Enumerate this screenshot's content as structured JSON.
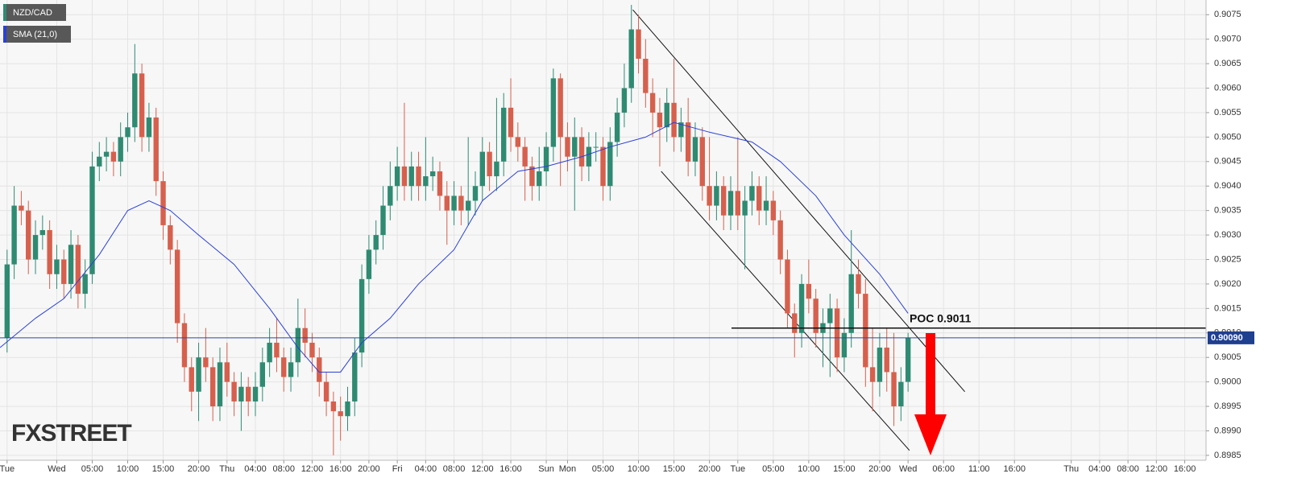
{
  "chart_data": {
    "type": "candlestick",
    "legend_position": "top-left",
    "grid": true,
    "watermark": "FXSTREET",
    "xlim": [
      -1,
      169
    ],
    "ylim": [
      0.8984,
      0.9078
    ],
    "xticks": [
      {
        "value": 0,
        "label": "Tue"
      },
      {
        "value": 7,
        "label": "Wed"
      },
      {
        "value": 12,
        "label": "05:00"
      },
      {
        "value": 17,
        "label": "10:00"
      },
      {
        "value": 22,
        "label": "15:00"
      },
      {
        "value": 27,
        "label": "20:00"
      },
      {
        "value": 31,
        "label": "Thu"
      },
      {
        "value": 35,
        "label": "04:00"
      },
      {
        "value": 39,
        "label": "08:00"
      },
      {
        "value": 43,
        "label": "12:00"
      },
      {
        "value": 47,
        "label": "16:00"
      },
      {
        "value": 51,
        "label": "20:00"
      },
      {
        "value": 55,
        "label": "Fri"
      },
      {
        "value": 59,
        "label": "04:00"
      },
      {
        "value": 63,
        "label": "08:00"
      },
      {
        "value": 67,
        "label": "12:00"
      },
      {
        "value": 71,
        "label": "16:00"
      },
      {
        "value": 76,
        "label": "Sun"
      },
      {
        "value": 79,
        "label": "Mon"
      },
      {
        "value": 84,
        "label": "05:00"
      },
      {
        "value": 89,
        "label": "10:00"
      },
      {
        "value": 94,
        "label": "15:00"
      },
      {
        "value": 99,
        "label": "20:00"
      },
      {
        "value": 103,
        "label": "Tue"
      },
      {
        "value": 108,
        "label": "05:00"
      },
      {
        "value": 113,
        "label": "10:00"
      },
      {
        "value": 118,
        "label": "15:00"
      },
      {
        "value": 123,
        "label": "20:00"
      },
      {
        "value": 127,
        "label": "Wed"
      },
      {
        "value": 132,
        "label": "06:00"
      },
      {
        "value": 137,
        "label": "11:00"
      },
      {
        "value": 142,
        "label": "16:00"
      },
      {
        "value": 150,
        "label": "Thu"
      },
      {
        "value": 154,
        "label": "04:00"
      },
      {
        "value": 158,
        "label": "08:00"
      },
      {
        "value": 162,
        "label": "12:00"
      },
      {
        "value": 166,
        "label": "16:00"
      }
    ],
    "yticks": [
      0.8985,
      {
        "value": 0.899,
        "label": "0.8990"
      },
      0.8995,
      {
        "value": 0.9,
        "label": "0.9000"
      },
      0.9005,
      {
        "value": 0.901,
        "label": "0.9010"
      },
      0.9015,
      {
        "value": 0.902,
        "label": "0.9020"
      },
      0.9025,
      {
        "value": 0.903,
        "label": "0.9030"
      },
      0.9035,
      {
        "value": 0.904,
        "label": "0.9040"
      },
      0.9045,
      {
        "value": 0.905,
        "label": "0.9050"
      },
      0.9055,
      {
        "value": 0.906,
        "label": "0.9060"
      },
      0.9065,
      {
        "value": 0.907,
        "label": "0.9070"
      },
      0.9075
    ],
    "series": [
      {
        "name": "NZD/CAD",
        "color": "#2e8b72",
        "up_color": "#2e8b72",
        "down_color": "#d6604d",
        "open": [
          0.9009,
          0.9024,
          0.9036,
          0.9035,
          0.9025,
          0.903,
          0.9031,
          0.9022,
          0.9025,
          0.902,
          0.9028,
          0.9018,
          0.9022,
          0.9044,
          0.9046,
          0.9047,
          0.9045,
          0.905,
          0.9052,
          0.9063,
          0.905,
          0.9054,
          0.9041,
          0.9032,
          0.9027,
          0.9012,
          0.9003,
          0.8998,
          0.9005,
          0.9003,
          0.8995,
          0.9004,
          0.9,
          0.8996,
          0.8999,
          0.8996,
          0.8999,
          0.9004,
          0.9008,
          0.9005,
          0.9001,
          0.9004,
          0.9011,
          0.9008,
          0.9005,
          0.9,
          0.8996,
          0.8994,
          0.8993,
          0.8996,
          0.9006,
          0.9021,
          0.9027,
          0.903,
          0.9036,
          0.904,
          0.9044,
          0.904,
          0.9044,
          0.904,
          0.9042,
          0.9043,
          0.9038,
          0.9035,
          0.9038,
          0.9035,
          0.9037,
          0.904,
          0.9047,
          0.9042,
          0.9045,
          0.9056,
          0.905,
          0.9048,
          0.9044,
          0.904,
          0.9043,
          0.9048,
          0.9062,
          0.905,
          0.9046,
          0.905,
          0.9044,
          0.9048,
          0.9048,
          0.904,
          0.9049,
          0.9055,
          0.906,
          0.9072,
          0.9066,
          0.9059,
          0.9055,
          0.9052,
          0.9057,
          0.905,
          0.9053,
          0.9045,
          0.905,
          0.904,
          0.9036,
          0.904,
          0.9034,
          0.9039,
          0.9034,
          0.9037,
          0.904,
          0.9035,
          0.9037,
          0.9033,
          0.9025,
          0.9014,
          0.901,
          0.902,
          0.9017,
          0.901,
          0.9012,
          0.9015,
          0.9005,
          0.901,
          0.9022,
          0.9018,
          0.9003,
          0.9,
          0.9007,
          0.9002,
          0.8995,
          0.9
        ],
        "high": [
          0.9027,
          0.904,
          0.9039,
          0.9037,
          0.9033,
          0.9034,
          0.9033,
          0.9028,
          0.9027,
          0.9031,
          0.903,
          0.9025,
          0.9047,
          0.9049,
          0.905,
          0.9049,
          0.9053,
          0.9055,
          0.9069,
          0.9065,
          0.9057,
          0.9056,
          0.9043,
          0.9034,
          0.9029,
          0.9014,
          0.9005,
          0.9008,
          0.9011,
          0.9005,
          0.9007,
          0.9008,
          0.9002,
          0.9002,
          0.9001,
          0.9002,
          0.9007,
          0.9011,
          0.9013,
          0.9007,
          0.9007,
          0.9017,
          0.9015,
          0.901,
          0.9007,
          0.9002,
          0.8998,
          0.8997,
          0.8999,
          0.9009,
          0.9024,
          0.903,
          0.9033,
          0.904,
          0.9045,
          0.9048,
          0.9057,
          0.9047,
          0.9047,
          0.905,
          0.9046,
          0.9045,
          0.9041,
          0.9041,
          0.904,
          0.905,
          0.9043,
          0.905,
          0.9049,
          0.9058,
          0.9059,
          0.9062,
          0.9053,
          0.905,
          0.9046,
          0.9048,
          0.9051,
          0.9064,
          0.9063,
          0.9053,
          0.9054,
          0.9052,
          0.9051,
          0.9051,
          0.905,
          0.9052,
          0.9058,
          0.9065,
          0.9077,
          0.9075,
          0.907,
          0.9062,
          0.9058,
          0.906,
          0.9066,
          0.9056,
          0.9058,
          0.9053,
          0.9052,
          0.905,
          0.9043,
          0.9042,
          0.9042,
          0.905,
          0.904,
          0.9043,
          0.9042,
          0.9042,
          0.9039,
          0.9035,
          0.9027,
          0.9016,
          0.9022,
          0.9025,
          0.9019,
          0.9015,
          0.9018,
          0.9017,
          0.9013,
          0.9031,
          0.9025,
          0.9021,
          0.9011,
          0.901,
          0.9011,
          0.901,
          0.9003,
          0.901
        ],
        "low": [
          0.9006,
          0.9021,
          0.9032,
          0.9022,
          0.9022,
          0.9027,
          0.9019,
          0.9019,
          0.9017,
          0.9017,
          0.9015,
          0.9015,
          0.902,
          0.9041,
          0.9043,
          0.9042,
          0.9042,
          0.9047,
          0.9049,
          0.9047,
          0.9047,
          0.9038,
          0.9029,
          0.9024,
          0.9008,
          0.9,
          0.8994,
          0.8992,
          0.9,
          0.8992,
          0.8992,
          0.8997,
          0.8993,
          0.899,
          0.8993,
          0.8993,
          0.8996,
          0.9001,
          0.9002,
          0.8998,
          0.8998,
          0.9001,
          0.9005,
          0.9002,
          0.8997,
          0.8993,
          0.8985,
          0.8988,
          0.899,
          0.8993,
          0.9003,
          0.9018,
          0.9024,
          0.9027,
          0.9033,
          0.9037,
          0.9037,
          0.9037,
          0.9037,
          0.9037,
          0.9039,
          0.9035,
          0.9028,
          0.9032,
          0.9032,
          0.9032,
          0.9034,
          0.9037,
          0.9039,
          0.9039,
          0.9042,
          0.9047,
          0.9045,
          0.9037,
          0.9037,
          0.9037,
          0.904,
          0.9045,
          0.904,
          0.9043,
          0.9035,
          0.9041,
          0.9041,
          0.9045,
          0.9037,
          0.9037,
          0.9046,
          0.9052,
          0.9057,
          0.9063,
          0.9056,
          0.905,
          0.9044,
          0.9049,
          0.9047,
          0.9047,
          0.9042,
          0.9042,
          0.9037,
          0.9033,
          0.9033,
          0.9031,
          0.9031,
          0.9031,
          0.9023,
          0.9034,
          0.9032,
          0.9032,
          0.903,
          0.9022,
          0.9011,
          0.9005,
          0.9007,
          0.9014,
          0.9007,
          0.9003,
          0.9001,
          0.9002,
          0.9002,
          0.9007,
          0.9015,
          0.8999,
          0.8994,
          0.8997,
          0.8998,
          0.8991,
          0.8992,
          0.8998
        ],
        "close": [
          0.9024,
          0.9036,
          0.9035,
          0.9025,
          0.903,
          0.9031,
          0.9022,
          0.9025,
          0.902,
          0.9028,
          0.9018,
          0.9022,
          0.9044,
          0.9046,
          0.9047,
          0.9045,
          0.905,
          0.9052,
          0.9063,
          0.905,
          0.9054,
          0.9041,
          0.9032,
          0.9027,
          0.9012,
          0.9003,
          0.8998,
          0.9005,
          0.9003,
          0.8995,
          0.9004,
          0.9,
          0.8996,
          0.8999,
          0.8996,
          0.8999,
          0.9004,
          0.9008,
          0.9005,
          0.9001,
          0.9004,
          0.9011,
          0.9008,
          0.9005,
          0.9,
          0.8996,
          0.8994,
          0.8993,
          0.8996,
          0.9006,
          0.9021,
          0.9027,
          0.903,
          0.9036,
          0.904,
          0.9044,
          0.904,
          0.9044,
          0.904,
          0.9042,
          0.9043,
          0.9038,
          0.9035,
          0.9038,
          0.9035,
          0.9037,
          0.904,
          0.9047,
          0.9042,
          0.9045,
          0.9056,
          0.905,
          0.9048,
          0.9044,
          0.904,
          0.9043,
          0.9048,
          0.9062,
          0.905,
          0.9046,
          0.905,
          0.9044,
          0.9048,
          0.9048,
          0.904,
          0.9049,
          0.9055,
          0.906,
          0.9072,
          0.9066,
          0.9059,
          0.9055,
          0.9052,
          0.9057,
          0.905,
          0.9053,
          0.9045,
          0.905,
          0.904,
          0.9036,
          0.904,
          0.9034,
          0.9039,
          0.9034,
          0.9037,
          0.904,
          0.9035,
          0.9037,
          0.9033,
          0.9025,
          0.9014,
          0.901,
          0.902,
          0.9017,
          0.901,
          0.9012,
          0.9015,
          0.9005,
          0.901,
          0.9022,
          0.9018,
          0.9003,
          0.9,
          0.9007,
          0.9002,
          0.8995,
          0.9,
          0.9009
        ]
      },
      {
        "name": "SMA (21,0)",
        "color": "#2a40d8",
        "type": "line",
        "x": [
          -1,
          4,
          8,
          13,
          17,
          20,
          23,
          27,
          32,
          37,
          41,
          44,
          47,
          50,
          54,
          58,
          63,
          67,
          72,
          76,
          81,
          85,
          90,
          94,
          99,
          105,
          109,
          114,
          118,
          123,
          127
        ],
        "values": [
          0.9007,
          0.9013,
          0.9017,
          0.9026,
          0.9035,
          0.9037,
          0.9035,
          0.903,
          0.9024,
          0.9015,
          0.9007,
          0.9002,
          0.9002,
          0.9008,
          0.9013,
          0.902,
          0.9027,
          0.9037,
          0.9043,
          0.9044,
          0.9046,
          0.9048,
          0.905,
          0.9053,
          0.9051,
          0.9049,
          0.9045,
          0.9038,
          0.903,
          0.9022,
          0.9014
        ]
      }
    ],
    "trendlines": [
      {
        "x": [
          88.2,
          135
        ],
        "values": [
          0.9076,
          0.8998
        ]
      },
      {
        "x": [
          92.2,
          127.2
        ],
        "values": [
          0.9043,
          0.8986
        ]
      }
    ],
    "poc": {
      "text": "POC 0.9011",
      "value": 0.9011
    },
    "last_price": {
      "value": 0.9009,
      "label": "0.90090"
    }
  }
}
